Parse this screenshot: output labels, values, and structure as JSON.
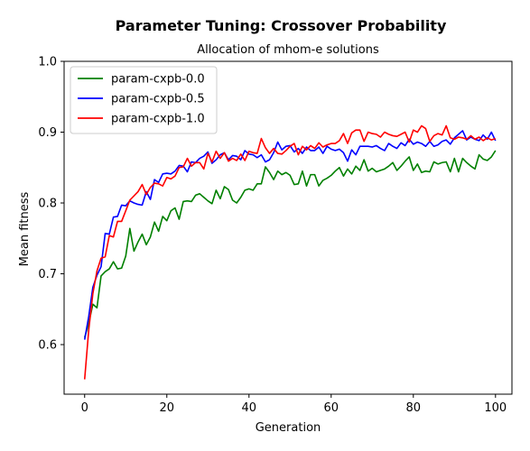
{
  "chart_data": {
    "type": "line",
    "title": "Parameter Tuning: Crossover Probability",
    "subtitle": "Allocation of mhom-e solutions",
    "xlabel": "Generation",
    "ylabel": "Mean fitness",
    "xlim": [
      -5,
      104
    ],
    "ylim": [
      0.53,
      1.0
    ],
    "xticks": [
      0,
      20,
      40,
      60,
      80,
      100
    ],
    "yticks": [
      0.6,
      0.7,
      0.8,
      0.9,
      1.0
    ],
    "ytick_labels": [
      "0.6",
      "0.7",
      "0.8",
      "0.9",
      "1.0"
    ],
    "grid": false,
    "legend_position": "upper-left",
    "series": [
      {
        "name": "param-cxpb-0.0",
        "color": "#008000",
        "values": [
          0.61,
          0.63,
          0.657,
          0.652,
          0.697,
          0.703,
          0.707,
          0.717,
          0.707,
          0.708,
          0.725,
          0.764,
          0.732,
          0.745,
          0.756,
          0.741,
          0.752,
          0.773,
          0.76,
          0.781,
          0.775,
          0.789,
          0.793,
          0.777,
          0.802,
          0.803,
          0.802,
          0.811,
          0.813,
          0.808,
          0.803,
          0.799,
          0.818,
          0.806,
          0.823,
          0.819,
          0.804,
          0.8,
          0.808,
          0.818,
          0.82,
          0.818,
          0.827,
          0.827,
          0.851,
          0.843,
          0.833,
          0.845,
          0.84,
          0.843,
          0.839,
          0.826,
          0.827,
          0.845,
          0.824,
          0.84,
          0.84,
          0.824,
          0.832,
          0.835,
          0.839,
          0.845,
          0.85,
          0.838,
          0.848,
          0.841,
          0.852,
          0.846,
          0.861,
          0.845,
          0.849,
          0.844,
          0.846,
          0.848,
          0.852,
          0.857,
          0.846,
          0.852,
          0.859,
          0.865,
          0.846,
          0.855,
          0.843,
          0.845,
          0.844,
          0.858,
          0.855,
          0.857,
          0.858,
          0.844,
          0.863,
          0.844,
          0.863,
          0.857,
          0.852,
          0.848,
          0.868,
          0.862,
          0.86,
          0.865,
          0.874
        ]
      },
      {
        "name": "param-cxpb-0.5",
        "color": "#0000ff",
        "values": [
          0.607,
          0.64,
          0.681,
          0.698,
          0.71,
          0.757,
          0.756,
          0.78,
          0.781,
          0.797,
          0.796,
          0.803,
          0.8,
          0.798,
          0.797,
          0.816,
          0.805,
          0.833,
          0.829,
          0.841,
          0.842,
          0.841,
          0.845,
          0.853,
          0.852,
          0.844,
          0.858,
          0.857,
          0.863,
          0.866,
          0.872,
          0.856,
          0.861,
          0.868,
          0.871,
          0.861,
          0.867,
          0.866,
          0.861,
          0.874,
          0.869,
          0.868,
          0.864,
          0.868,
          0.858,
          0.861,
          0.871,
          0.886,
          0.875,
          0.88,
          0.881,
          0.872,
          0.877,
          0.87,
          0.879,
          0.874,
          0.874,
          0.879,
          0.87,
          0.88,
          0.876,
          0.874,
          0.876,
          0.871,
          0.859,
          0.875,
          0.868,
          0.88,
          0.88,
          0.88,
          0.879,
          0.881,
          0.877,
          0.874,
          0.884,
          0.88,
          0.877,
          0.885,
          0.881,
          0.89,
          0.883,
          0.886,
          0.884,
          0.88,
          0.887,
          0.88,
          0.882,
          0.887,
          0.889,
          0.883,
          0.892,
          0.897,
          0.902,
          0.889,
          0.893,
          0.89,
          0.888,
          0.896,
          0.89,
          0.9,
          0.888
        ]
      },
      {
        "name": "param-cxpb-1.0",
        "color": "#ff0000",
        "values": [
          0.551,
          0.621,
          0.672,
          0.704,
          0.722,
          0.724,
          0.754,
          0.752,
          0.774,
          0.774,
          0.789,
          0.804,
          0.81,
          0.816,
          0.826,
          0.812,
          0.822,
          0.828,
          0.827,
          0.824,
          0.836,
          0.834,
          0.838,
          0.85,
          0.851,
          0.863,
          0.852,
          0.857,
          0.857,
          0.848,
          0.87,
          0.858,
          0.873,
          0.863,
          0.871,
          0.859,
          0.863,
          0.86,
          0.869,
          0.86,
          0.873,
          0.871,
          0.87,
          0.891,
          0.878,
          0.87,
          0.877,
          0.87,
          0.869,
          0.874,
          0.88,
          0.884,
          0.868,
          0.88,
          0.875,
          0.881,
          0.877,
          0.885,
          0.879,
          0.882,
          0.884,
          0.884,
          0.888,
          0.898,
          0.884,
          0.899,
          0.903,
          0.903,
          0.887,
          0.9,
          0.898,
          0.897,
          0.893,
          0.9,
          0.897,
          0.895,
          0.894,
          0.897,
          0.9,
          0.886,
          0.903,
          0.9,
          0.909,
          0.905,
          0.887,
          0.895,
          0.898,
          0.896,
          0.909,
          0.892,
          0.89,
          0.893,
          0.892,
          0.89,
          0.895,
          0.89,
          0.893,
          0.888,
          0.892,
          0.889,
          0.891
        ]
      }
    ]
  }
}
